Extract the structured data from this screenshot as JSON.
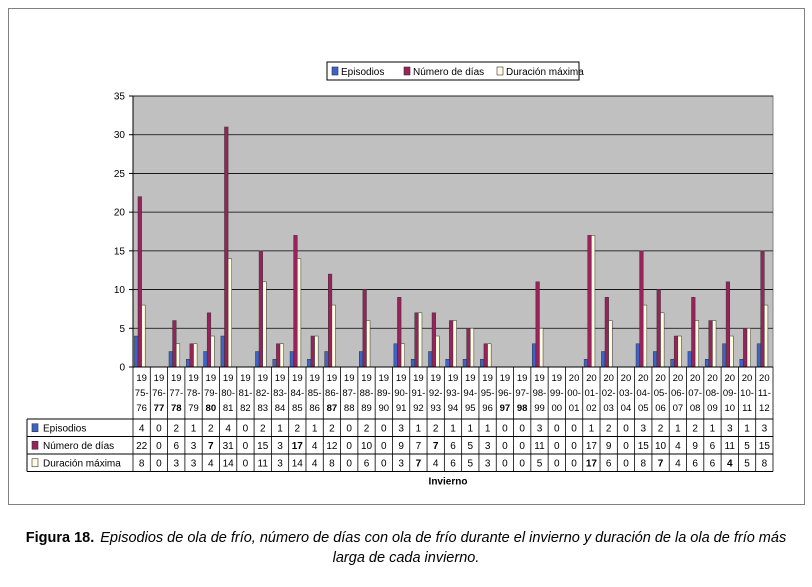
{
  "chart_data": {
    "type": "bar",
    "xlabel": "Invierno",
    "ylim": [
      0,
      35
    ],
    "yticks": [
      0,
      5,
      10,
      15,
      20,
      25,
      30,
      35
    ],
    "grid": true,
    "legend_position": "top",
    "categories": [
      [
        "19",
        "75-",
        "76"
      ],
      [
        "19",
        "76-",
        "77"
      ],
      [
        "19",
        "77-",
        "78"
      ],
      [
        "19",
        "78-",
        "79"
      ],
      [
        "19",
        "79-",
        "80"
      ],
      [
        "19",
        "80-",
        "81"
      ],
      [
        "19",
        "81-",
        "82"
      ],
      [
        "19",
        "82-",
        "83"
      ],
      [
        "19",
        "83-",
        "84"
      ],
      [
        "19",
        "84-",
        "85"
      ],
      [
        "19",
        "85-",
        "86"
      ],
      [
        "19",
        "86-",
        "87"
      ],
      [
        "19",
        "87-",
        "88"
      ],
      [
        "19",
        "88-",
        "89"
      ],
      [
        "19",
        "89-",
        "90"
      ],
      [
        "19",
        "90-",
        "91"
      ],
      [
        "19",
        "91-",
        "92"
      ],
      [
        "19",
        "92-",
        "93"
      ],
      [
        "19",
        "93-",
        "94"
      ],
      [
        "19",
        "94-",
        "95"
      ],
      [
        "19",
        "95-",
        "96"
      ],
      [
        "19",
        "96-",
        "97"
      ],
      [
        "19",
        "97-",
        "98"
      ],
      [
        "19",
        "98-",
        "99"
      ],
      [
        "19",
        "99-",
        "00"
      ],
      [
        "20",
        "00-",
        "01"
      ],
      [
        "20",
        "01-",
        "02"
      ],
      [
        "20",
        "02-",
        "03"
      ],
      [
        "20",
        "03-",
        "04"
      ],
      [
        "20",
        "04-",
        "05"
      ],
      [
        "20",
        "05-",
        "06"
      ],
      [
        "20",
        "06-",
        "07"
      ],
      [
        "20",
        "07-",
        "08"
      ],
      [
        "20",
        "08-",
        "09"
      ],
      [
        "20",
        "09-",
        "10"
      ],
      [
        "20",
        "10-",
        "11"
      ],
      [
        "20",
        "11-",
        "12"
      ]
    ],
    "series": [
      {
        "name": "Episodios",
        "color": "#3c64c8",
        "values": [
          4,
          0,
          2,
          1,
          2,
          4,
          0,
          2,
          1,
          2,
          1,
          2,
          0,
          2,
          0,
          3,
          1,
          2,
          1,
          1,
          1,
          0,
          0,
          3,
          0,
          0,
          1,
          2,
          0,
          3,
          2,
          1,
          2,
          1,
          3,
          1,
          3
        ]
      },
      {
        "name": "Número de días",
        "color": "#99225b",
        "values": [
          22,
          0,
          6,
          3,
          7,
          31,
          0,
          15,
          3,
          17,
          4,
          12,
          0,
          10,
          0,
          9,
          7,
          7,
          6,
          5,
          3,
          0,
          0,
          11,
          0,
          0,
          17,
          9,
          0,
          15,
          10,
          4,
          9,
          6,
          11,
          5,
          15
        ]
      },
      {
        "name": "Duración máxima",
        "color": "#fffbe0",
        "values": [
          8,
          0,
          3,
          3,
          4,
          14,
          0,
          11,
          3,
          14,
          4,
          8,
          0,
          6,
          0,
          3,
          7,
          4,
          6,
          5,
          3,
          0,
          0,
          5,
          0,
          0,
          17,
          6,
          0,
          8,
          7,
          4,
          6,
          6,
          4,
          5,
          8
        ]
      }
    ],
    "bold_cells": {
      "Episodios": [],
      "Número de días": [
        4,
        9,
        17
      ],
      "Duración máxima": [
        16,
        26,
        30,
        34
      ]
    },
    "bold_year_labels": [
      1,
      2,
      4,
      11,
      21,
      22
    ]
  },
  "caption": {
    "label": "Figura 18.",
    "text": "Episodios de ola de frío, número de días con ola de frío durante el invierno y duración de la ola de frío más larga de cada invierno."
  }
}
